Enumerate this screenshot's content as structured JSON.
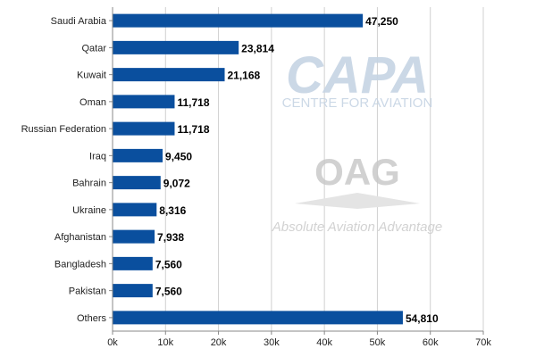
{
  "chart_data": {
    "type": "bar",
    "orientation": "horizontal",
    "categories": [
      "Saudi Arabia",
      "Qatar",
      "Kuwait",
      "Oman",
      "Russian Federation",
      "Iraq",
      "Bahrain",
      "Ukraine",
      "Afghanistan",
      "Bangladesh",
      "Pakistan",
      "Others"
    ],
    "values": [
      47250,
      23814,
      21168,
      11718,
      11718,
      9450,
      9072,
      8316,
      7938,
      7560,
      7560,
      54810
    ],
    "value_labels": [
      "47,250",
      "23,814",
      "21,168",
      "11,718",
      "11,718",
      "9,450",
      "9,072",
      "8,316",
      "7,938",
      "7,560",
      "7,560",
      "54,810"
    ],
    "x_ticks": [
      0,
      10000,
      20000,
      30000,
      40000,
      50000,
      60000,
      70000
    ],
    "x_tick_labels": [
      "0k",
      "10k",
      "20k",
      "30k",
      "40k",
      "50k",
      "60k",
      "70k"
    ],
    "xlim": [
      0,
      70000
    ],
    "grid": true,
    "bar_color": "#0a4f9e",
    "title": "",
    "xlabel": "",
    "ylabel": ""
  },
  "watermark": {
    "capa_logo": "CAPA",
    "capa_tagline": "CENTRE FOR AVIATION",
    "oag_logo": "OAG",
    "oag_tagline": "Absolute Aviation Advantage",
    "color": "#c6d4e4"
  }
}
